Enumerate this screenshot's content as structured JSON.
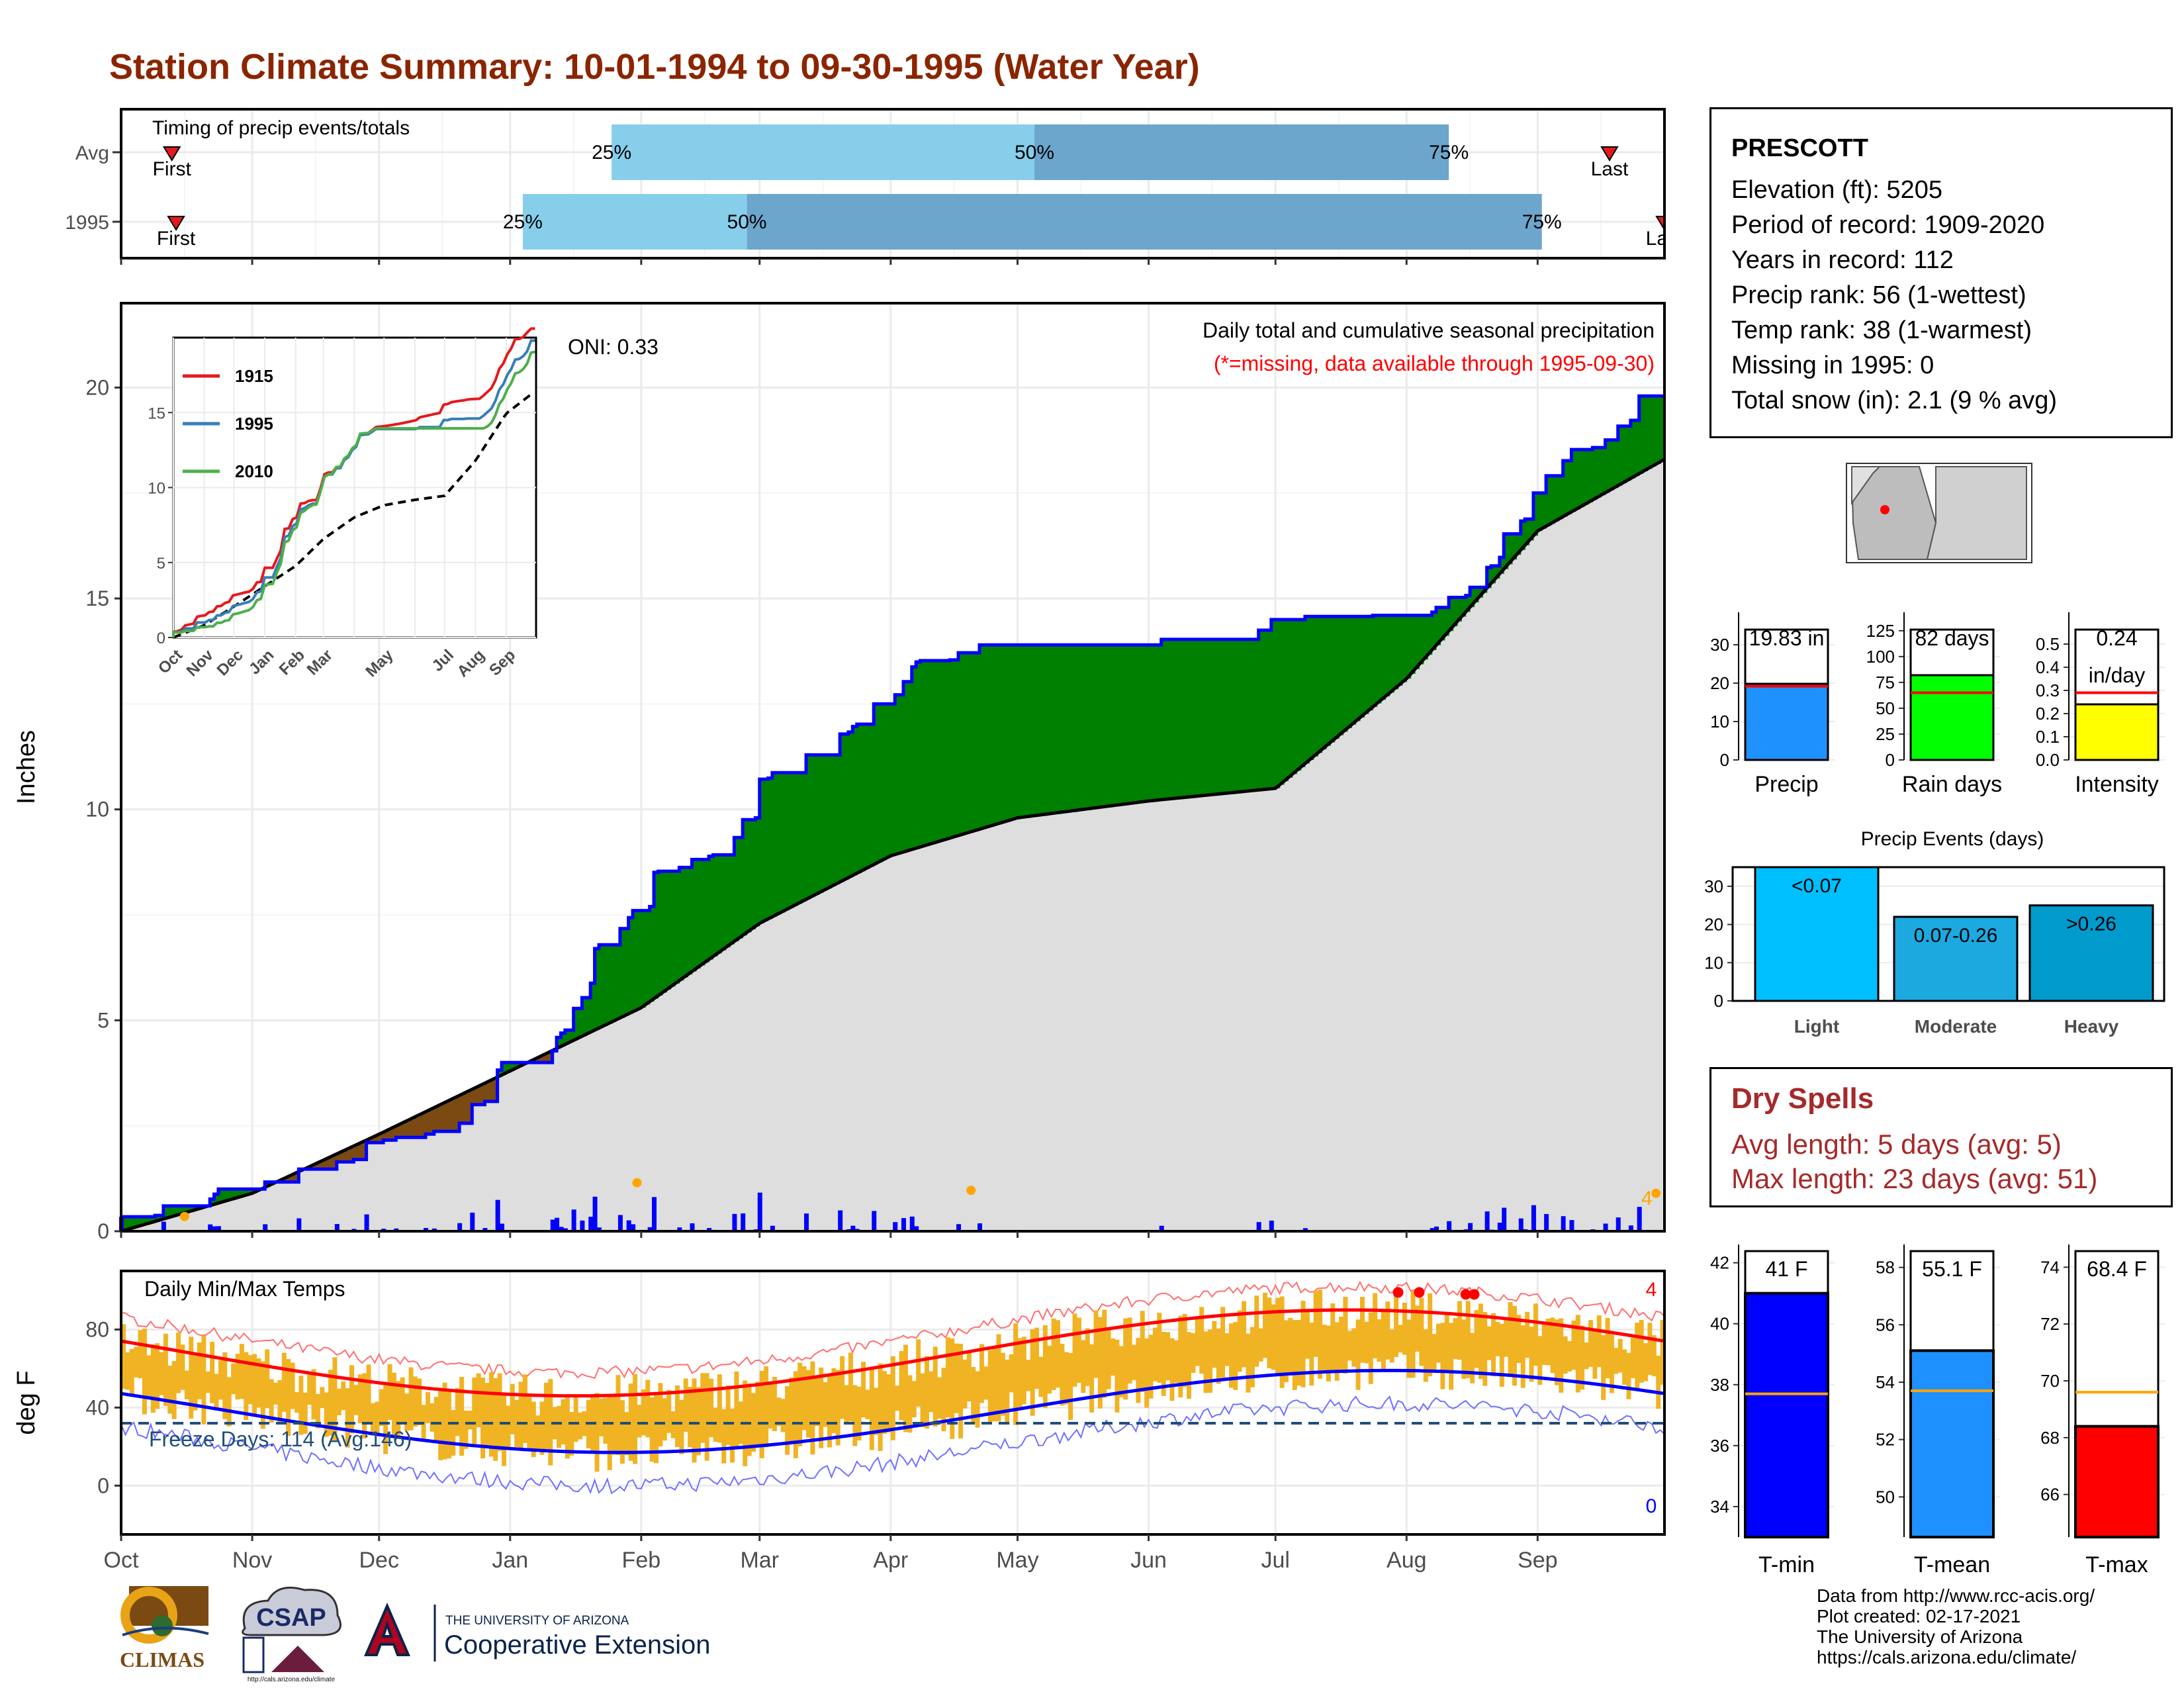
{
  "title": "Station Climate Summary: 10-01-1994 to 09-30-1995 (Water Year)",
  "timing": {
    "label": "Timing of precip events/totals",
    "rows": [
      {
        "name": "Avg",
        "first_label": "First",
        "last_label": "Last",
        "q25": "25%",
        "q50": "50%",
        "q75": "75%",
        "first_doy": 12,
        "p25_doy": 116,
        "p50_doy": 216,
        "p75_doy": 314,
        "last_doy": 352
      },
      {
        "name": "1995",
        "first_label": "First",
        "last_label": "Last",
        "q25": "25%",
        "q50": "50%",
        "q75": "75%",
        "first_doy": 13,
        "p25_doy": 95,
        "p50_doy": 148,
        "p75_doy": 336,
        "last_doy": 365
      }
    ]
  },
  "months": [
    "Oct",
    "Nov",
    "Dec",
    "Jan",
    "Feb",
    "Mar",
    "Apr",
    "May",
    "Jun",
    "Jul",
    "Aug",
    "Sep"
  ],
  "precip_panel": {
    "ylabel": "Inches",
    "oni": "ONI: 0.33",
    "caption": "Daily total and cumulative seasonal precipitation",
    "missing_note": "(*=missing, data available through 1995-09-30)",
    "corner_label": "4"
  },
  "inset": {
    "legend": [
      "1915",
      "1995",
      "2010"
    ],
    "colors": {
      "1915": "#E41A1C",
      "1995": "#377EB8",
      "2010": "#4DAF4A"
    },
    "months": [
      "Oct",
      "Nov",
      "Dec",
      "Jan",
      "Feb",
      "Mar",
      "Apr",
      "May",
      "Jun",
      "Jul",
      "Aug",
      "Sep"
    ]
  },
  "temp_panel": {
    "label": "Daily Min/Max Temps",
    "ylabel": "deg F",
    "freeze": "Freeze Days: 114 (Avg:146)",
    "record_high_count": "4",
    "record_low_count": "0"
  },
  "station": {
    "name": "PRESCOTT",
    "lines": [
      "Elevation (ft): 5205",
      "Period of record: 1909-2020",
      "Years in record: 112",
      "Precip rank: 56 (1-wettest)",
      "Temp rank: 38 (1-warmest)",
      "Missing in 1995: 0",
      "Total snow (in): 2.1 (9 % avg)"
    ]
  },
  "summary_bars": [
    {
      "name": "Precip",
      "value": 19.83,
      "avg": 19.2,
      "max": 35,
      "ticks": [
        0,
        10,
        20,
        30
      ],
      "label": "19.83 in",
      "color": "#1E90FF"
    },
    {
      "name": "Rain days",
      "value": 82,
      "avg": 65,
      "max": 130,
      "ticks": [
        0,
        25,
        50,
        75,
        100,
        125
      ],
      "label": "82 days",
      "color": "#00FF00"
    },
    {
      "name": "Intensity",
      "value": 0.24,
      "avg": 0.29,
      "max": 0.58,
      "ticks": [
        0.0,
        0.1,
        0.2,
        0.3,
        0.4,
        0.5
      ],
      "label": "0.24\nin/day",
      "color": "#FFFF00"
    }
  ],
  "events": {
    "title": "Precip Events (days)",
    "bars": [
      {
        "name": "Light",
        "value": 35,
        "label": "<0.07",
        "color": "#00BFFF"
      },
      {
        "name": "Moderate",
        "value": 22,
        "label": "0.07-0.26",
        "color": "#1CA9E0"
      },
      {
        "name": "Heavy",
        "value": 25,
        "label": ">0.26",
        "color": "#009ACD"
      }
    ],
    "ticks": [
      0,
      10,
      20,
      30
    ]
  },
  "dry_spells": {
    "title": "Dry Spells",
    "avg_line": "Avg length: 5 days (avg: 5)",
    "max_line": "Max length: 23 days (avg: 51)"
  },
  "temp_bars": [
    {
      "name": "T-min",
      "value": 41,
      "avg": 37.7,
      "min": 33,
      "max": 42.6,
      "ticks": [
        34,
        36,
        38,
        40,
        42
      ],
      "label": "41 F",
      "color": "#0000FF"
    },
    {
      "name": "T-mean",
      "value": 55.1,
      "avg": 53.7,
      "min": 48.6,
      "max": 58.8,
      "ticks": [
        50,
        52,
        54,
        56,
        58
      ],
      "label": "55.1 F",
      "color": "#1E90FF"
    },
    {
      "name": "T-max",
      "value": 68.4,
      "avg": 69.6,
      "min": 64.5,
      "max": 74.8,
      "ticks": [
        66,
        68,
        70,
        72,
        74
      ],
      "label": "68.4 F",
      "color": "#FF0000"
    }
  ],
  "footer": [
    "Data from http://www.rcc-acis.org/",
    "Plot created: 02-17-2021",
    "The University of Arizona",
    "https://cals.arizona.edu/climate/"
  ],
  "logos": {
    "climas": "CLIMAS",
    "csap": "CSAP",
    "csap_url": "http://cals.arizona.edu/climate",
    "ua_small": "THE UNIVERSITY OF ARIZONA",
    "ua_big": "Cooperative Extension"
  },
  "chart_data": {
    "type": "area",
    "x": [
      "Oct",
      "Nov",
      "Dec",
      "Jan",
      "Feb",
      "Mar",
      "Apr",
      "May",
      "Jun",
      "Jul",
      "Aug",
      "Sep",
      "Oct"
    ],
    "series": [
      {
        "name": "1995",
        "values": [
          0.0,
          1.0,
          2.1,
          4.0,
          7.6,
          9.8,
          12.5,
          13.9,
          13.9,
          14.5,
          14.6,
          17.5,
          19.8
        ]
      },
      {
        "values": [
          0.0,
          0.9,
          2.3,
          3.8,
          5.3,
          7.3,
          8.9,
          9.8,
          10.2,
          10.5,
          13.1,
          16.6,
          18.3
        ]
      }
    ],
    "ylabel": "Inches",
    "ylim": [
      0,
      22
    ]
  }
}
